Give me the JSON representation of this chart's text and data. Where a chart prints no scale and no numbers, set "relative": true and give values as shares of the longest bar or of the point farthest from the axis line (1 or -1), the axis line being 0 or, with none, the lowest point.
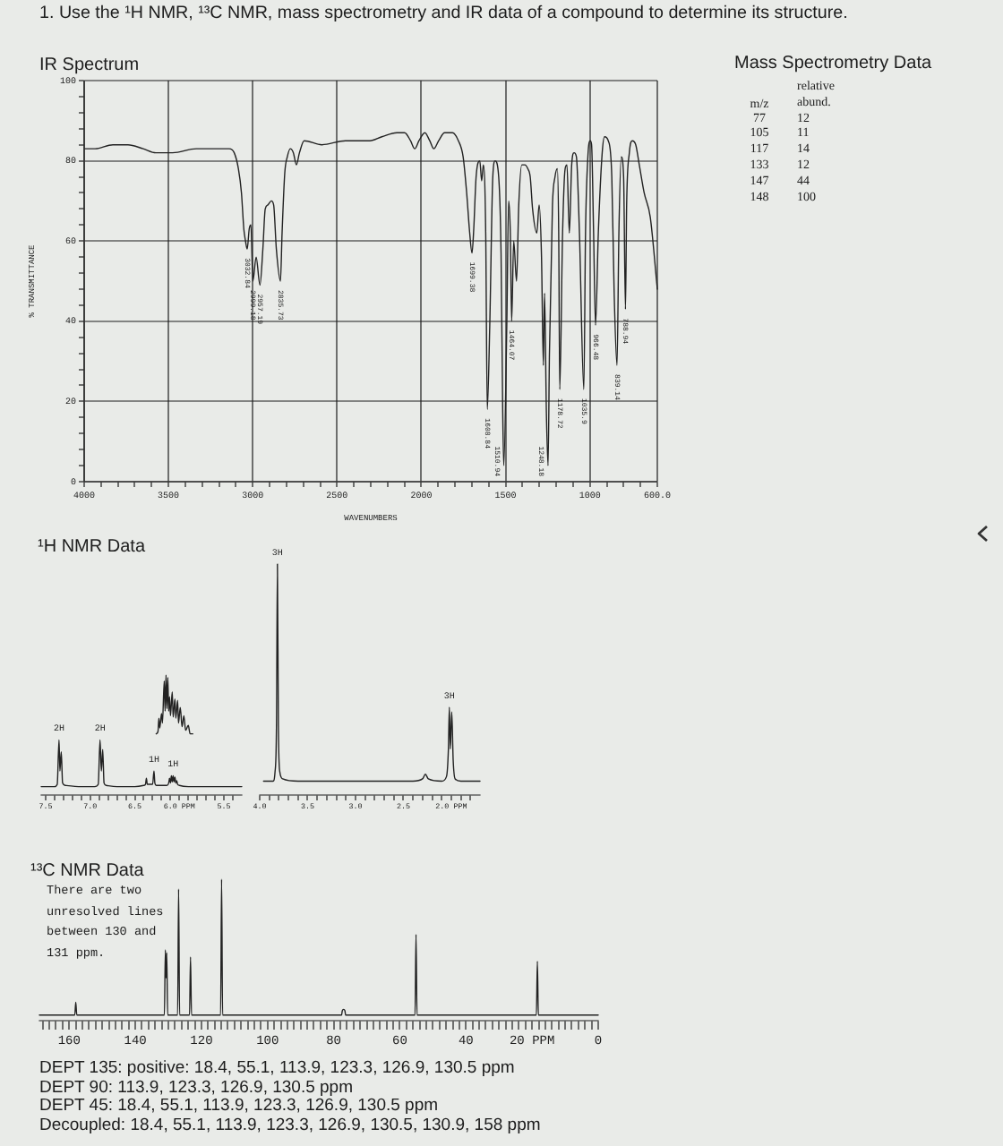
{
  "chart_data": [
    {
      "type": "other",
      "title": "1. Use the ¹H NMR, ¹³C NMR, mass spectrometry and IR data of a compound to determine its structure."
    },
    {
      "type": "line",
      "title": "IR Spectrum",
      "xlabel": "WAVENUMBERS",
      "ylabel": "% TRANSMITTANCE",
      "x": [
        3995,
        3935,
        3830,
        3740,
        3650,
        3575,
        3475,
        3335,
        3225,
        3140,
        3110,
        3085,
        3067,
        3053,
        3043,
        3032.84,
        3021,
        3011,
        2999.18,
        2980,
        2957.19,
        2940,
        2926,
        2910,
        2890,
        2876,
        2860,
        2835.73,
        2826,
        2810,
        2795,
        2777,
        2759,
        2741,
        2723,
        2695,
        2590,
        2450,
        2376,
        2305,
        2234,
        2145,
        2099,
        2064,
        2039,
        2014,
        1979,
        1950,
        1926,
        1897,
        1862,
        1816,
        1780,
        1752,
        1731,
        1713,
        1699.38,
        1689,
        1675,
        1653,
        1642,
        1632,
        1618,
        1608.84,
        1594,
        1576,
        1562,
        1541,
        1527,
        1517,
        1510.94,
        1493,
        1482,
        1472,
        1464.07,
        1452,
        1435,
        1422,
        1404,
        1386,
        1368,
        1354,
        1340,
        1315,
        1301,
        1287,
        1276,
        1269,
        1258,
        1248.18,
        1240,
        1222,
        1207,
        1193,
        1185,
        1178.72,
        1162,
        1147,
        1136,
        1122,
        1108,
        1094,
        1080,
        1062,
        1035.9,
        1026,
        1012,
        998,
        990,
        978,
        966.48,
        950,
        927,
        913,
        891,
        870,
        856,
        839.14,
        828,
        814,
        800,
        788.94,
        782,
        766,
        749,
        728,
        707,
        678,
        642,
        600
      ],
      "values": [
        83,
        83,
        84,
        84,
        83,
        82,
        82,
        83,
        83,
        83,
        82,
        78,
        72,
        63,
        60,
        58,
        63,
        64,
        50,
        56,
        49,
        58,
        68,
        69,
        70,
        69,
        58,
        50,
        62,
        77,
        81,
        83,
        82,
        79,
        82,
        85,
        84,
        85,
        85,
        85,
        86,
        87,
        87,
        85,
        83,
        85,
        87,
        85,
        83,
        85,
        87,
        87,
        85,
        81,
        72,
        62,
        57,
        63,
        76,
        80,
        75,
        79,
        62,
        18,
        39,
        76,
        80,
        76,
        57,
        17,
        4,
        39,
        70,
        62,
        40,
        60,
        50,
        69,
        79,
        79,
        78,
        76,
        68,
        62,
        69,
        56,
        29,
        47,
        17,
        4,
        32,
        69,
        76,
        78,
        62,
        23,
        62,
        78,
        79,
        62,
        79,
        82,
        81,
        62,
        23,
        62,
        81,
        85,
        84,
        62,
        39,
        62,
        82,
        86,
        85,
        76,
        47,
        29,
        62,
        81,
        76,
        43,
        69,
        82,
        85,
        84,
        79,
        72,
        66,
        48
      ],
      "color": "#222222",
      "xlim": [
        4000,
        600
      ],
      "xticks": [
        4000,
        {
          "value": 3900,
          "label": null
        },
        {
          "value": 3800,
          "label": null
        },
        {
          "value": 3700,
          "label": null
        },
        {
          "value": 3600,
          "label": null
        },
        3500,
        {
          "value": 3400,
          "label": null
        },
        {
          "value": 3300,
          "label": null
        },
        {
          "value": 3200,
          "label": null
        },
        {
          "value": 3100,
          "label": null
        },
        3000,
        {
          "value": 2900,
          "label": null
        },
        {
          "value": 2800,
          "label": null
        },
        {
          "value": 2700,
          "label": null
        },
        {
          "value": 2600,
          "label": null
        },
        2500,
        {
          "value": 2400,
          "label": null
        },
        {
          "value": 2300,
          "label": null
        },
        {
          "value": 2200,
          "label": null
        },
        {
          "value": 2100,
          "label": null
        },
        2000,
        {
          "value": 1900,
          "label": null
        },
        {
          "value": 1800,
          "label": null
        },
        {
          "value": 1700,
          "label": null
        },
        {
          "value": 1600,
          "label": null
        },
        1500,
        {
          "value": 1400,
          "label": null
        },
        {
          "value": 1300,
          "label": null
        },
        {
          "value": 1200,
          "label": null
        },
        {
          "value": 1100,
          "label": null
        },
        1000,
        {
          "value": 900,
          "label": null
        },
        {
          "value": 800,
          "label": null
        },
        {
          "value": 700,
          "label": null
        },
        {
          "value": 600,
          "label": "600.0"
        }
      ],
      "ylim": [
        0,
        100
      ],
      "yticks": [
        0,
        {
          "value": 4,
          "label": null
        },
        {
          "value": 8,
          "label": null
        },
        {
          "value": 12,
          "label": null
        },
        {
          "value": 16,
          "label": null
        },
        20,
        {
          "value": 24,
          "label": null
        },
        {
          "value": 28,
          "label": null
        },
        {
          "value": 32,
          "label": null
        },
        {
          "value": 36,
          "label": null
        },
        40,
        {
          "value": 44,
          "label": null
        },
        {
          "value": 48,
          "label": null
        },
        {
          "value": 52,
          "label": null
        },
        {
          "value": 56,
          "label": null
        },
        60,
        {
          "value": 64,
          "label": null
        },
        {
          "value": 68,
          "label": null
        },
        {
          "value": 72,
          "label": null
        },
        {
          "value": 76,
          "label": null
        },
        80,
        {
          "value": 84,
          "label": null
        },
        {
          "value": 88,
          "label": null
        },
        {
          "value": 92,
          "label": null
        },
        {
          "value": 96,
          "label": null
        },
        100
      ],
      "grid": true,
      "annotations": [
        {
          "text": "3032.84",
          "x": 3032.84,
          "y": 58
        },
        {
          "text": "2999.18",
          "x": 2999.18,
          "y": 50
        },
        {
          "text": "2957.19",
          "x": 2957.19,
          "y": 49
        },
        {
          "text": "2835.73",
          "x": 2835.73,
          "y": 50
        },
        {
          "text": "1699.38",
          "x": 1699.38,
          "y": 57
        },
        {
          "text": "1608.84",
          "x": 1608.84,
          "y": 18
        },
        {
          "text": "1510.94",
          "x": 1510.94,
          "y": 4
        },
        {
          "text": "1464.07",
          "x": 1464.07,
          "y": 40
        },
        {
          "text": "1248.18",
          "x": 1248.18,
          "y": 4
        },
        {
          "text": "1178.72",
          "x": 1178.72,
          "y": 23
        },
        {
          "text": "1035.9",
          "x": 1035.9,
          "y": 23
        },
        {
          "text": "966.48",
          "x": 966.48,
          "y": 39
        },
        {
          "text": "839.14",
          "x": 839.14,
          "y": 29
        },
        {
          "text": "788.94",
          "x": 788.94,
          "y": 43
        }
      ]
    },
    {
      "type": "other",
      "title": "Mass Spectrometry Data",
      "xlabel": "m/z",
      "ylabel": "relative abund.",
      "categories": [
        "77",
        "105",
        "117",
        "133",
        "147",
        "148"
      ],
      "values": [
        12,
        11,
        14,
        12,
        44,
        100
      ],
      "data_labels": true
    },
    {
      "type": "line",
      "title": "¹H NMR Data",
      "relative": true,
      "series": [
        {
          "color": "#222222",
          "x": [
            7.55,
            7.4,
            7.37,
            7.35,
            7.34,
            7.325,
            7.31,
            7.28,
            7.1,
            6.95,
            6.91,
            6.89,
            6.875,
            6.86,
            6.845,
            6.82,
            6.7,
            6.5,
            6.4,
            6.38,
            6.37,
            6.36,
            6.3,
            6.285,
            6.275,
            6.26,
            6.14,
            6.12,
            6.11,
            6.1,
            6.09,
            6.08,
            6.07,
            6.06,
            6.05,
            6.04,
            6.03,
            6.02,
            6.0,
            5.9,
            5.7,
            5.3
          ],
          "values": [
            0.07,
            0.07,
            0.09,
            0.46,
            0.2,
            0.36,
            0.1,
            0.08,
            0.07,
            0.07,
            0.09,
            0.46,
            0.2,
            0.38,
            0.1,
            0.08,
            0.07,
            0.07,
            0.08,
            0.09,
            0.14,
            0.09,
            0.09,
            0.2,
            0.1,
            0.08,
            0.08,
            0.1,
            0.14,
            0.1,
            0.16,
            0.11,
            0.16,
            0.11,
            0.15,
            0.1,
            0.12,
            0.09,
            0.08,
            0.07,
            0.07,
            0.07
          ]
        },
        {
          "color": "#222222",
          "x": [
            6.26,
            6.24,
            6.23,
            6.22,
            6.2,
            6.19,
            6.17,
            6.16,
            6.15,
            6.14,
            6.13,
            6.12,
            6.11,
            6.1,
            6.08,
            6.07,
            6.05,
            6.04,
            6.02,
            6.01,
            5.99,
            5.97,
            5.95,
            5.93,
            5.9,
            5.88,
            5.85
          ],
          "values": [
            0.51,
            0.53,
            0.64,
            0.56,
            0.68,
            0.6,
            0.95,
            0.7,
            1.0,
            0.72,
            0.98,
            0.7,
            0.82,
            0.66,
            0.86,
            0.65,
            0.8,
            0.64,
            0.79,
            0.6,
            0.73,
            0.57,
            0.66,
            0.54,
            0.58,
            0.51,
            0.51
          ]
        }
      ],
      "xlim": [
        7.55,
        5.3
      ],
      "xticks": [
        7.5,
        {
          "value": 7.4,
          "label": null
        },
        {
          "value": 7.3,
          "label": null
        },
        {
          "value": 7.2,
          "label": null
        },
        {
          "value": 7.1,
          "label": null
        },
        {
          "value": 7,
          "label": "7.0"
        },
        {
          "value": 6.9,
          "label": null
        },
        {
          "value": 6.8,
          "label": null
        },
        {
          "value": 6.7,
          "label": null
        },
        {
          "value": 6.6,
          "label": null
        },
        6.5,
        {
          "value": 6.4,
          "label": null
        },
        {
          "value": 6.3,
          "label": null
        },
        {
          "value": 6.2,
          "label": null
        },
        {
          "value": 6.1,
          "label": null
        },
        {
          "value": 6,
          "label": "6.0 PPM"
        },
        {
          "value": 5.9,
          "label": null
        },
        {
          "value": 5.8,
          "label": null
        },
        {
          "value": 5.7,
          "label": null
        },
        {
          "value": 5.6,
          "label": null
        },
        5.5,
        {
          "value": 5.4,
          "label": null
        }
      ],
      "annotations": [
        {
          "text": "2H",
          "x": 7.35,
          "y": 0.46
        },
        {
          "text": "2H",
          "x": 6.89,
          "y": 0.46
        },
        {
          "text": "1H",
          "x": 6.285,
          "y": 0.2
        },
        {
          "text": "1H",
          "x": 6.07,
          "y": 0.16
        }
      ]
    },
    {
      "type": "line",
      "relative": true,
      "x": [
        3.96,
        3.86,
        3.84,
        3.825,
        3.815,
        3.805,
        3.79,
        3.76,
        3.6,
        3.0,
        2.4,
        2.3,
        2.27,
        2.24,
        2.1,
        2.05,
        2.03,
        2.02,
        2.01,
        1.995,
        1.98,
        1.96,
        1.9,
        1.7
      ],
      "values": [
        0.06,
        0.06,
        0.1,
        0.3,
        1.0,
        0.3,
        0.1,
        0.07,
        0.06,
        0.06,
        0.06,
        0.07,
        0.09,
        0.07,
        0.06,
        0.08,
        0.2,
        0.38,
        0.2,
        0.36,
        0.15,
        0.07,
        0.06,
        0.06
      ],
      "color": "#222222",
      "xlim": [
        4.0,
        1.7
      ],
      "xticks": [
        {
          "value": 4,
          "label": "4.0"
        },
        {
          "value": 3.9,
          "label": null
        },
        {
          "value": 3.8,
          "label": null
        },
        {
          "value": 3.7,
          "label": null
        },
        {
          "value": 3.6,
          "label": null
        },
        3.5,
        {
          "value": 3.4,
          "label": null
        },
        {
          "value": 3.3,
          "label": null
        },
        {
          "value": 3.2,
          "label": null
        },
        {
          "value": 3.1,
          "label": null
        },
        {
          "value": 3,
          "label": "3.0"
        },
        {
          "value": 2.9,
          "label": null
        },
        {
          "value": 2.8,
          "label": null
        },
        {
          "value": 2.7,
          "label": null
        },
        {
          "value": 2.6,
          "label": null
        },
        2.5,
        {
          "value": 2.4,
          "label": null
        },
        {
          "value": 2.3,
          "label": null
        },
        {
          "value": 2.2,
          "label": null
        },
        {
          "value": 2.1,
          "label": null
        },
        {
          "value": 2,
          "label": "2.0 PPM"
        },
        {
          "value": 1.9,
          "label": null
        },
        {
          "value": 1.8,
          "label": null
        }
      ],
      "annotations": [
        {
          "text": "3H",
          "x": 3.815,
          "y": 1.0
        },
        {
          "text": "3H",
          "x": 2.02,
          "y": 0.38
        }
      ]
    },
    {
      "type": "line",
      "title": "¹³C NMR Data",
      "relative": true,
      "x": [
        169,
        158.3,
        158,
        157.7,
        131.2,
        130.9,
        130.7,
        130.5,
        130.2,
        127.2,
        126.9,
        126.6,
        123.6,
        123.3,
        123.0,
        114.2,
        113.9,
        113.6,
        77.6,
        77.4,
        77.0,
        76.6,
        76.4,
        55.4,
        55.1,
        54.8,
        18.7,
        18.4,
        18.1,
        0
      ],
      "values": [
        0.04,
        0.04,
        0.13,
        0.04,
        0.04,
        0.5,
        0.3,
        0.48,
        0.04,
        0.04,
        0.93,
        0.04,
        0.04,
        0.45,
        0.04,
        0.04,
        1.0,
        0.04,
        0.04,
        0.07,
        0.08,
        0.07,
        0.04,
        0.04,
        0.61,
        0.04,
        0.04,
        0.42,
        0.04,
        0.04
      ],
      "color": "#222222",
      "xlim": [
        169,
        0
      ],
      "xticks": [
        {
          "value": 168,
          "label": null
        },
        {
          "value": 166,
          "label": null
        },
        {
          "value": 164,
          "label": null
        },
        {
          "value": 162,
          "label": null
        },
        160,
        {
          "value": 158,
          "label": null
        },
        {
          "value": 156,
          "label": null
        },
        {
          "value": 154,
          "label": null
        },
        {
          "value": 152,
          "label": null
        },
        {
          "value": 150,
          "label": null
        },
        {
          "value": 148,
          "label": null
        },
        {
          "value": 146,
          "label": null
        },
        {
          "value": 144,
          "label": null
        },
        {
          "value": 142,
          "label": null
        },
        140,
        {
          "value": 138,
          "label": null
        },
        {
          "value": 136,
          "label": null
        },
        {
          "value": 134,
          "label": null
        },
        {
          "value": 132,
          "label": null
        },
        {
          "value": 130,
          "label": null
        },
        {
          "value": 128,
          "label": null
        },
        {
          "value": 126,
          "label": null
        },
        {
          "value": 124,
          "label": null
        },
        {
          "value": 122,
          "label": null
        },
        120,
        {
          "value": 118,
          "label": null
        },
        {
          "value": 116,
          "label": null
        },
        {
          "value": 114,
          "label": null
        },
        {
          "value": 112,
          "label": null
        },
        {
          "value": 110,
          "label": null
        },
        {
          "value": 108,
          "label": null
        },
        {
          "value": 106,
          "label": null
        },
        {
          "value": 104,
          "label": null
        },
        {
          "value": 102,
          "label": null
        },
        100,
        {
          "value": 98,
          "label": null
        },
        {
          "value": 96,
          "label": null
        },
        {
          "value": 94,
          "label": null
        },
        {
          "value": 92,
          "label": null
        },
        {
          "value": 90,
          "label": null
        },
        {
          "value": 88,
          "label": null
        },
        {
          "value": 86,
          "label": null
        },
        {
          "value": 84,
          "label": null
        },
        {
          "value": 82,
          "label": null
        },
        80,
        {
          "value": 78,
          "label": null
        },
        {
          "value": 76,
          "label": null
        },
        {
          "value": 74,
          "label": null
        },
        {
          "value": 72,
          "label": null
        },
        {
          "value": 70,
          "label": null
        },
        {
          "value": 68,
          "label": null
        },
        {
          "value": 66,
          "label": null
        },
        {
          "value": 64,
          "label": null
        },
        {
          "value": 62,
          "label": null
        },
        60,
        {
          "value": 58,
          "label": null
        },
        {
          "value": 56,
          "label": null
        },
        {
          "value": 54,
          "label": null
        },
        {
          "value": 52,
          "label": null
        },
        {
          "value": 50,
          "label": null
        },
        {
          "value": 48,
          "label": null
        },
        {
          "value": 46,
          "label": null
        },
        {
          "value": 44,
          "label": null
        },
        {
          "value": 42,
          "label": null
        },
        40,
        {
          "value": 38,
          "label": null
        },
        {
          "value": 36,
          "label": null
        },
        {
          "value": 34,
          "label": null
        },
        {
          "value": 32,
          "label": null
        },
        {
          "value": 30,
          "label": null
        },
        {
          "value": 28,
          "label": null
        },
        {
          "value": 26,
          "label": null
        },
        {
          "value": 24,
          "label": null
        },
        {
          "value": 22,
          "label": null
        },
        {
          "value": 20,
          "label": "20 PPM"
        },
        {
          "value": 18,
          "label": null
        },
        {
          "value": 16,
          "label": null
        },
        {
          "value": 14,
          "label": null
        },
        {
          "value": 12,
          "label": null
        },
        {
          "value": 10,
          "label": null
        },
        {
          "value": 8,
          "label": null
        },
        {
          "value": 6,
          "label": null
        },
        {
          "value": 4,
          "label": null
        },
        {
          "value": 2,
          "label": null
        },
        0
      ],
      "annotations": [
        "There are two unresolved lines between 130 and 131 ppm.",
        "DEPT 135: positive: 18.4, 55.1, 113.9, 123.3, 126.9, 130.5 ppm",
        "DEPT 90: 113.9, 123.3, 126.9, 130.5 ppm",
        "DEPT 45: 18.4, 55.1, 113.9, 123.3, 126.9, 130.5 ppm",
        "Decoupled: 18.4, 55.1, 113.9, 123.3, 126.9, 130.5, 130.9, 158 ppm"
      ]
    }
  ]
}
